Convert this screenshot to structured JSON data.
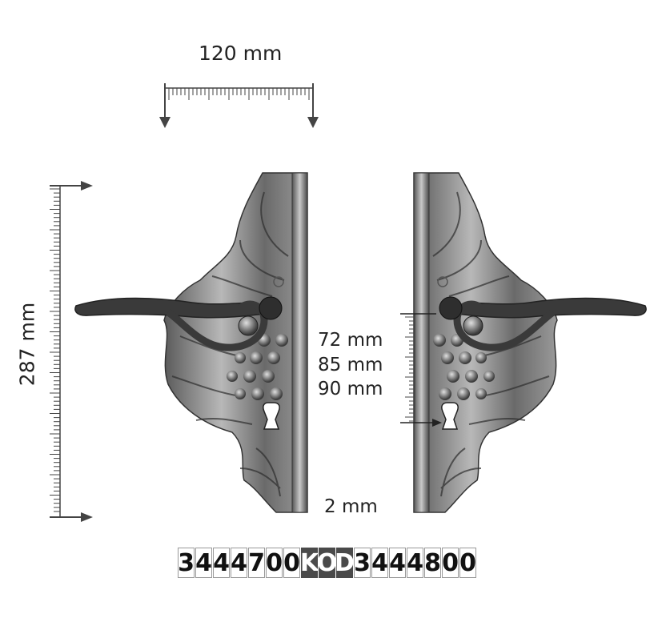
{
  "dimensions": {
    "width_label": "120 mm",
    "height_label": "287 mm",
    "offsets": [
      "72 mm",
      "85 mm",
      "90 mm"
    ],
    "thickness_label": "2 mm"
  },
  "code": {
    "left": [
      "3",
      "4",
      "4",
      "4",
      "7",
      "0",
      "0"
    ],
    "middle": [
      "K",
      "O",
      "D"
    ],
    "right": [
      "3",
      "4",
      "4",
      "4",
      "8",
      "0",
      "0"
    ]
  },
  "colors": {
    "metal_dark": "#3a3a3a",
    "metal_mid": "#7a7a7a",
    "metal_light": "#c9c9c9",
    "kod_bg": "#4a4a4a"
  }
}
